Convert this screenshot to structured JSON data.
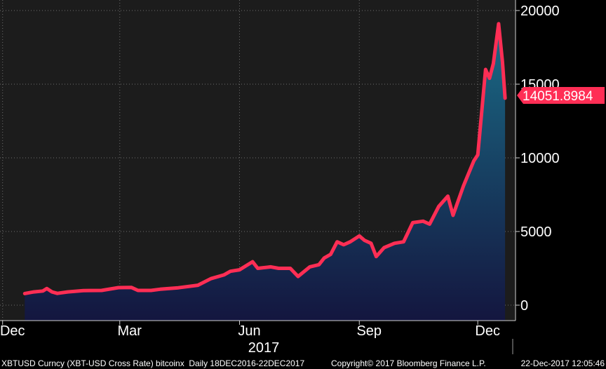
{
  "chart_data": {
    "type": "area",
    "security": "XBTUSD Curncy (XBT-USD Cross Rate) bitcoinx",
    "frequency": "Daily",
    "range": "18DEC2016-22DEC2017",
    "ylim": [
      -500,
      20500
    ],
    "y_ticks": [
      0,
      5000,
      10000,
      15000,
      20000
    ],
    "y_tick_labels": [
      "0",
      "5000",
      "10000",
      "15000",
      "20000"
    ],
    "y_axis_side": "right",
    "x_ticks": [
      {
        "label": "Dec",
        "date": "2016-12-01"
      },
      {
        "label": "Mar",
        "date": "2017-03-01"
      },
      {
        "label": "Jun",
        "date": "2017-06-01"
      },
      {
        "label": "Sep",
        "date": "2017-09-01"
      },
      {
        "label": "Dec",
        "date": "2017-12-01"
      }
    ],
    "year_label": "2017",
    "grid": true,
    "line_color": "#ff2e55",
    "fill_top_color": "#1a6b86",
    "fill_bottom_color": "#14163f",
    "plot_background": "#1c1c1c",
    "last_value_label": "14051.8984",
    "series": [
      {
        "x": [
          "2016-12-18",
          "2016-12-25",
          "2017-01-01",
          "2017-01-04",
          "2017-01-08",
          "2017-01-12",
          "2017-01-20",
          "2017-02-01",
          "2017-02-15",
          "2017-02-28",
          "2017-03-10",
          "2017-03-15",
          "2017-03-25",
          "2017-04-01",
          "2017-04-15",
          "2017-04-30",
          "2017-05-10",
          "2017-05-20",
          "2017-05-25",
          "2017-06-01",
          "2017-06-11",
          "2017-06-15",
          "2017-06-25",
          "2017-07-01",
          "2017-07-10",
          "2017-07-16",
          "2017-07-25",
          "2017-08-01",
          "2017-08-05",
          "2017-08-10",
          "2017-08-15",
          "2017-08-20",
          "2017-08-25",
          "2017-09-01",
          "2017-09-05",
          "2017-09-10",
          "2017-09-14",
          "2017-09-20",
          "2017-09-28",
          "2017-10-05",
          "2017-10-12",
          "2017-10-20",
          "2017-10-25",
          "2017-11-01",
          "2017-11-08",
          "2017-11-12",
          "2017-11-20",
          "2017-11-28",
          "2017-12-01",
          "2017-12-07",
          "2017-12-10",
          "2017-12-13",
          "2017-12-17",
          "2017-12-20",
          "2017-12-22"
        ],
        "y": [
          790,
          900,
          960,
          1130,
          900,
          800,
          900,
          990,
          1000,
          1190,
          1200,
          1000,
          1000,
          1080,
          1180,
          1350,
          1800,
          2050,
          2300,
          2400,
          2950,
          2500,
          2600,
          2500,
          2500,
          1950,
          2600,
          2750,
          3200,
          3450,
          4300,
          4100,
          4300,
          4700,
          4400,
          4200,
          3300,
          3900,
          4200,
          4300,
          5600,
          5700,
          5500,
          6700,
          7400,
          6100,
          8100,
          9800,
          10200,
          16000,
          15400,
          16400,
          19100,
          16500,
          14051.8984
        ]
      }
    ]
  },
  "footer": {
    "left_text": "XBTUSD Curncy (XBT-USD Cross Rate) bitcoinx  Daily 18DEC2016-22DEC2017",
    "copyright": "Copyright© 2017 Bloomberg Finance L.P.",
    "timestamp": "22-Dec-2017 12:05:46"
  }
}
